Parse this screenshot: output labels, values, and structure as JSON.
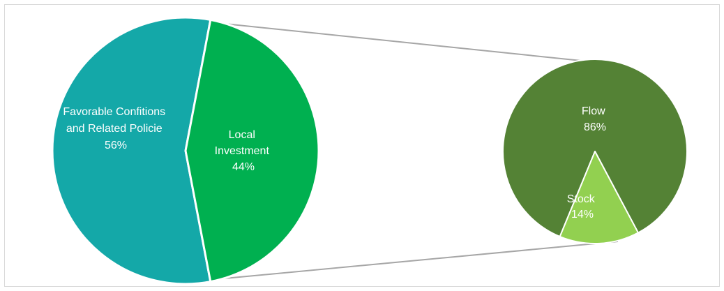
{
  "chart_data": [
    {
      "type": "pie",
      "slices": [
        {
          "label_lines": [
            "Favorable Confitions",
            "and Related Policie"
          ],
          "pct_label": "56%",
          "value": 56,
          "color": "#14a8a8"
        },
        {
          "label_lines": [
            "Local",
            "Investment"
          ],
          "pct_label": "44%",
          "value": 44,
          "color": "#00b050"
        }
      ]
    },
    {
      "type": "pie",
      "slices": [
        {
          "label_lines": [
            "Flow"
          ],
          "pct_label": "86%",
          "value": 86,
          "color": "#548235"
        },
        {
          "label_lines": [
            "Stock"
          ],
          "pct_label": "14%",
          "value": 14,
          "color": "#92d050"
        }
      ]
    }
  ],
  "colors": {
    "connector": "#a6a6a6",
    "frame": "#d9d9d9",
    "slice_border": "#ffffff"
  }
}
